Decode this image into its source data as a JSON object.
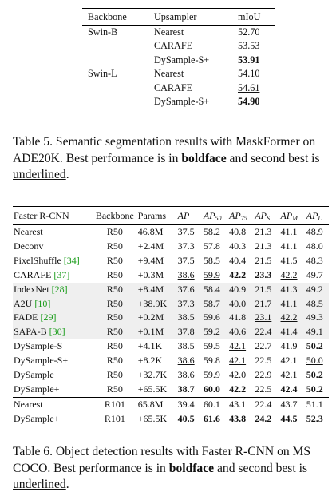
{
  "table5": {
    "headers": [
      "Backbone",
      "Upsampler",
      "mIoU"
    ],
    "rows": [
      {
        "backbone": "Swin-B",
        "upsampler": "Nearest",
        "miou": "52.70",
        "style": ""
      },
      {
        "backbone": "",
        "upsampler": "CARAFE",
        "miou": "53.53",
        "style": "ul"
      },
      {
        "backbone": "",
        "upsampler": "DySample-S+",
        "miou": "53.91",
        "style": "bold"
      },
      {
        "backbone": "Swin-L",
        "upsampler": "Nearest",
        "miou": "54.10",
        "style": ""
      },
      {
        "backbone": "",
        "upsampler": "CARAFE",
        "miou": "54.61",
        "style": "ul"
      },
      {
        "backbone": "",
        "upsampler": "DySample-S+",
        "miou": "54.90",
        "style": "bold"
      }
    ],
    "caption": {
      "prefix": "Table 5. Semantic segmentation results with MaskFormer on ADE20K. Best performance is in ",
      "bold_word": "boldface",
      "middle": " and second best is ",
      "ul_word": "underlined",
      "suffix": "."
    }
  },
  "table6": {
    "headers": {
      "method": "Faster R-CNN",
      "backbone": "Backbone",
      "params": "Params",
      "ap": "AP",
      "ap50": "AP",
      "ap50_sub": "50",
      "ap75": "AP",
      "ap75_sub": "75",
      "aps": "AP",
      "aps_sub": "S",
      "apm": "AP",
      "apm_sub": "M",
      "apl": "AP",
      "apl_sub": "L"
    },
    "groups": [
      [
        {
          "method": "Nearest",
          "cite": "",
          "backbone": "R50",
          "params": "46.8M",
          "v": [
            "37.5",
            "58.2",
            "40.8",
            "21.3",
            "41.1",
            "48.9"
          ],
          "s": [
            "",
            "",
            "",
            "",
            "",
            ""
          ],
          "grey": false
        },
        {
          "method": "Deconv",
          "cite": "",
          "backbone": "R50",
          "params": "+2.4M",
          "v": [
            "37.3",
            "57.8",
            "40.3",
            "21.3",
            "41.1",
            "48.0"
          ],
          "s": [
            "",
            "",
            "",
            "",
            "",
            ""
          ],
          "grey": false
        },
        {
          "method": "PixelShuffle ",
          "cite": "[34]",
          "backbone": "R50",
          "params": "+9.4M",
          "v": [
            "37.5",
            "58.5",
            "40.4",
            "21.5",
            "41.5",
            "48.3"
          ],
          "s": [
            "",
            "",
            "",
            "",
            "",
            ""
          ],
          "grey": false
        },
        {
          "method": "CARAFE ",
          "cite": "[37]",
          "backbone": "R50",
          "params": "+0.3M",
          "v": [
            "38.6",
            "59.9",
            "42.2",
            "23.3",
            "42.2",
            "49.7"
          ],
          "s": [
            "ul",
            "ul",
            "bold",
            "bold",
            "ul",
            ""
          ],
          "grey": false
        },
        {
          "method": "IndexNet ",
          "cite": "[28]",
          "backbone": "R50",
          "params": "+8.4M",
          "v": [
            "37.6",
            "58.4",
            "40.9",
            "21.5",
            "41.3",
            "49.2"
          ],
          "s": [
            "",
            "",
            "",
            "",
            "",
            ""
          ],
          "grey": true
        },
        {
          "method": "A2U ",
          "cite": "[10]",
          "backbone": "R50",
          "params": "+38.9K",
          "v": [
            "37.3",
            "58.7",
            "40.0",
            "21.7",
            "41.1",
            "48.5"
          ],
          "s": [
            "",
            "",
            "",
            "",
            "",
            ""
          ],
          "grey": true
        },
        {
          "method": "FADE ",
          "cite": "[29]",
          "backbone": "R50",
          "params": "+0.2M",
          "v": [
            "38.5",
            "59.6",
            "41.8",
            "23.1",
            "42.2",
            "49.3"
          ],
          "s": [
            "",
            "",
            "",
            "ul",
            "ul",
            ""
          ],
          "grey": true
        },
        {
          "method": "SAPA-B ",
          "cite": "[30]",
          "backbone": "R50",
          "params": "+0.1M",
          "v": [
            "37.8",
            "59.2",
            "40.6",
            "22.4",
            "41.4",
            "49.1"
          ],
          "s": [
            "",
            "",
            "",
            "",
            "",
            ""
          ],
          "grey": true
        },
        {
          "method": "DySample-S",
          "cite": "",
          "backbone": "R50",
          "params": "+4.1K",
          "v": [
            "38.5",
            "59.5",
            "42.1",
            "22.7",
            "41.9",
            "50.2"
          ],
          "s": [
            "",
            "",
            "ul",
            "",
            "",
            "bold"
          ],
          "grey": false
        },
        {
          "method": "DySample-S+",
          "cite": "",
          "backbone": "R50",
          "params": "+8.2K",
          "v": [
            "38.6",
            "59.8",
            "42.1",
            "22.5",
            "42.1",
            "50.0"
          ],
          "s": [
            "ul",
            "",
            "ul",
            "",
            "",
            "ul"
          ],
          "grey": false
        },
        {
          "method": "DySample",
          "cite": "",
          "backbone": "R50",
          "params": "+32.7K",
          "v": [
            "38.6",
            "59.9",
            "42.0",
            "22.9",
            "42.1",
            "50.2"
          ],
          "s": [
            "ul",
            "ul",
            "",
            "",
            "",
            "bold"
          ],
          "grey": false
        },
        {
          "method": "DySample+",
          "cite": "",
          "backbone": "R50",
          "params": "+65.5K",
          "v": [
            "38.7",
            "60.0",
            "42.2",
            "22.5",
            "42.4",
            "50.2"
          ],
          "s": [
            "bold",
            "bold",
            "bold",
            "",
            "bold",
            "bold"
          ],
          "grey": false
        }
      ],
      [
        {
          "method": "Nearest",
          "cite": "",
          "backbone": "R101",
          "params": "65.8M",
          "v": [
            "39.4",
            "60.1",
            "43.1",
            "22.4",
            "43.7",
            "51.1"
          ],
          "s": [
            "",
            "",
            "",
            "",
            "",
            ""
          ],
          "grey": false
        },
        {
          "method": "DySample+",
          "cite": "",
          "backbone": "R101",
          "params": "+65.5K",
          "v": [
            "40.5",
            "61.6",
            "43.8",
            "24.2",
            "44.5",
            "52.3"
          ],
          "s": [
            "bold",
            "bold",
            "bold",
            "bold",
            "bold",
            "bold"
          ],
          "grey": false
        }
      ]
    ],
    "caption": {
      "prefix": "Table 6. Object detection results with Faster R-CNN on MS COCO. Best performance is in ",
      "bold_word": "boldface",
      "middle": " and second best is ",
      "ul_word": "underlined",
      "suffix": "."
    }
  }
}
